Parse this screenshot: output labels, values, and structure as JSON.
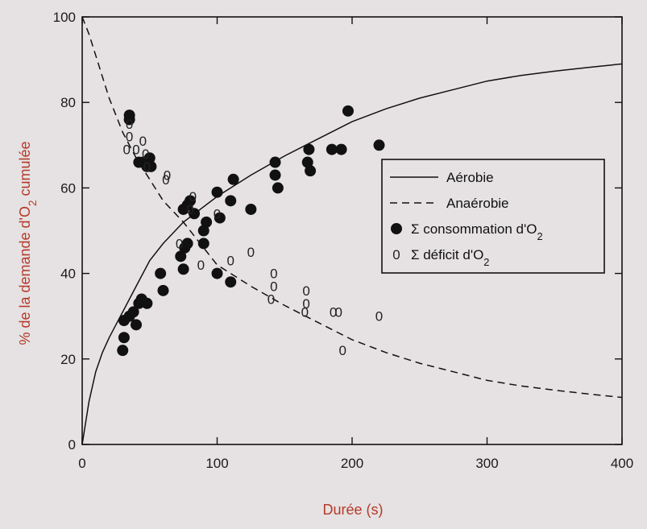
{
  "chart_data": {
    "type": "scatter",
    "title": "",
    "xlabel": "Durée (s)",
    "ylabel_parts": [
      "% de la demande d'O",
      "2",
      " cumulée"
    ],
    "xlim": [
      0,
      400
    ],
    "ylim": [
      0,
      100
    ],
    "xticks": [
      "0",
      "100",
      "200",
      "300",
      "400"
    ],
    "yticks": [
      "0",
      "20",
      "40",
      "60",
      "80",
      "100"
    ],
    "grid": false,
    "legend_position": "right",
    "colors": {
      "axis_title": "#b53a2a",
      "ink": "#111111",
      "background": "#e6e2e3"
    },
    "legend": [
      {
        "kind": "solid-line",
        "parts": [
          "Aérobie"
        ]
      },
      {
        "kind": "dashed-line",
        "parts": [
          "Anaérobie"
        ]
      },
      {
        "kind": "filled-dot",
        "parts": [
          "Σ consommation d'O",
          "2",
          ""
        ]
      },
      {
        "kind": "hollow-zero",
        "marker": "0",
        "parts": [
          "Σ déficit d'O",
          "2",
          ""
        ]
      }
    ],
    "series": [
      {
        "name": "Aérobie",
        "kind": "line",
        "x": [
          0,
          5,
          10,
          15,
          20,
          25,
          30,
          40,
          50,
          60,
          75,
          100,
          125,
          150,
          175,
          200,
          225,
          250,
          275,
          300,
          325,
          350,
          375,
          400
        ],
        "y": [
          0,
          10,
          17,
          21.5,
          25,
          28,
          31,
          37,
          43,
          47,
          52,
          58,
          63,
          67.5,
          71.5,
          75.5,
          78.5,
          81,
          83,
          85,
          86.3,
          87.3,
          88.2,
          89
        ]
      },
      {
        "name": "Anaérobie",
        "kind": "line",
        "x": [
          0,
          5,
          10,
          15,
          20,
          25,
          30,
          40,
          50,
          60,
          75,
          100,
          125,
          150,
          175,
          200,
          225,
          250,
          275,
          300,
          325,
          350,
          375,
          400
        ],
        "y": [
          100,
          96,
          91,
          86,
          81,
          77,
          73,
          67,
          62,
          57,
          52,
          42,
          37,
          32.5,
          28.5,
          24.5,
          21.5,
          19,
          17,
          15,
          13.7,
          12.7,
          11.8,
          11
        ]
      },
      {
        "name": "Σ consommation d'O2",
        "kind": "filled-dot",
        "points": [
          [
            30,
            22
          ],
          [
            31,
            25
          ],
          [
            31,
            29
          ],
          [
            35,
            30
          ],
          [
            38,
            31
          ],
          [
            40,
            28
          ],
          [
            42,
            33
          ],
          [
            44,
            34
          ],
          [
            48,
            33
          ],
          [
            35,
            76
          ],
          [
            35,
            77
          ],
          [
            42,
            66
          ],
          [
            45,
            66
          ],
          [
            48,
            65
          ],
          [
            50,
            67
          ],
          [
            51,
            65
          ],
          [
            58,
            40
          ],
          [
            60,
            36
          ],
          [
            73,
            44
          ],
          [
            75,
            41
          ],
          [
            76,
            46
          ],
          [
            78,
            47
          ],
          [
            75,
            55
          ],
          [
            78,
            56
          ],
          [
            80,
            57
          ],
          [
            83,
            54
          ],
          [
            90,
            47
          ],
          [
            90,
            50
          ],
          [
            92,
            52
          ],
          [
            100,
            40
          ],
          [
            100,
            59
          ],
          [
            102,
            53
          ],
          [
            110,
            38
          ],
          [
            110,
            57
          ],
          [
            112,
            62
          ],
          [
            125,
            55
          ],
          [
            143,
            63
          ],
          [
            143,
            66
          ],
          [
            145,
            60
          ],
          [
            167,
            66
          ],
          [
            168,
            69
          ],
          [
            169,
            64
          ],
          [
            185,
            69
          ],
          [
            192,
            69
          ],
          [
            197,
            78
          ],
          [
            220,
            70
          ]
        ]
      },
      {
        "name": "Σ déficit d'O2",
        "kind": "hollow-zero",
        "points": [
          [
            33,
            69
          ],
          [
            35,
            72
          ],
          [
            35,
            75
          ],
          [
            40,
            69
          ],
          [
            45,
            71
          ],
          [
            47,
            68
          ],
          [
            48,
            65
          ],
          [
            62,
            62
          ],
          [
            63,
            63
          ],
          [
            72,
            47
          ],
          [
            80,
            55
          ],
          [
            82,
            58
          ],
          [
            88,
            42
          ],
          [
            100,
            54
          ],
          [
            110,
            43
          ],
          [
            125,
            45
          ],
          [
            140,
            34
          ],
          [
            142,
            37
          ],
          [
            142,
            40
          ],
          [
            165,
            31
          ],
          [
            166,
            33
          ],
          [
            166,
            36
          ],
          [
            186,
            31
          ],
          [
            190,
            31
          ],
          [
            193,
            22
          ],
          [
            220,
            30
          ]
        ]
      }
    ]
  }
}
